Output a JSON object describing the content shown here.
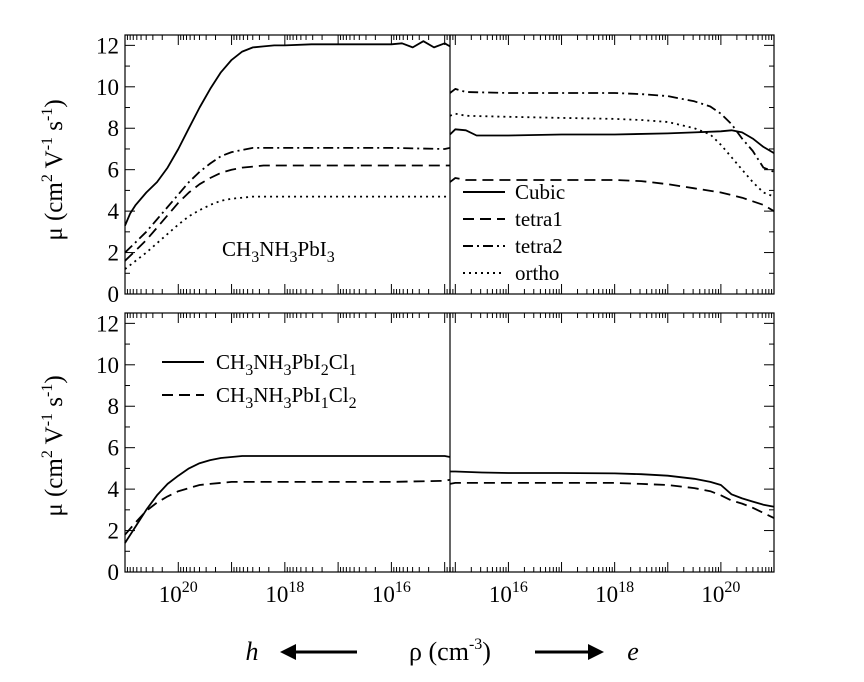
{
  "chart_data": [
    {
      "type": "line",
      "panel": "top",
      "ylabel": {
        "main": "μ (cm",
        "sup1": "2",
        "mid1": " V",
        "sup2": "-1",
        "mid2": " s",
        "sup3": "-1",
        "end": ")"
      },
      "ylim": [
        0,
        12.5
      ],
      "yticks": [
        "0",
        "2",
        "4",
        "6",
        "8",
        "10",
        "12"
      ],
      "annotation": {
        "a": "CH",
        "s1": "3",
        "b": "NH",
        "s2": "3",
        "c": "PbI",
        "s3": "3"
      },
      "sides": {
        "left": {
          "carrier": "h",
          "x_log_range": [
            21,
            14.9
          ],
          "series": [
            {
              "name": "Cubic",
              "style": "solid",
              "x": [
                21,
                20.9,
                20.8,
                20.6,
                20.4,
                20.2,
                20.0,
                19.8,
                19.6,
                19.4,
                19.2,
                19.0,
                18.8,
                18.6,
                18.4,
                18.2,
                18.0,
                17.5,
                17.0,
                16.5,
                16.0,
                15.8,
                15.6,
                15.4,
                15.2,
                15.0,
                14.9
              ],
              "y": [
                3.3,
                3.9,
                4.3,
                4.9,
                5.4,
                6.1,
                7.0,
                8.0,
                9.0,
                9.9,
                10.7,
                11.3,
                11.7,
                11.9,
                11.95,
                12.0,
                12.0,
                12.05,
                12.05,
                12.05,
                12.05,
                12.1,
                11.9,
                12.2,
                11.9,
                12.1,
                11.95
              ]
            },
            {
              "name": "tetra1",
              "style": "dashed",
              "x": [
                21,
                20.8,
                20.6,
                20.4,
                20.2,
                20.0,
                19.8,
                19.6,
                19.4,
                19.2,
                19.0,
                18.8,
                18.6,
                18.4,
                18.2,
                18.0,
                17.0,
                16.0,
                15.0,
                14.9
              ],
              "y": [
                1.6,
                2.1,
                2.6,
                3.2,
                3.8,
                4.4,
                4.9,
                5.3,
                5.6,
                5.85,
                6.0,
                6.1,
                6.15,
                6.2,
                6.2,
                6.2,
                6.2,
                6.2,
                6.2,
                6.2
              ]
            },
            {
              "name": "tetra2",
              "style": "dashdot",
              "x": [
                21,
                20.8,
                20.6,
                20.4,
                20.2,
                20.0,
                19.8,
                19.6,
                19.4,
                19.2,
                19.0,
                18.8,
                18.6,
                18.4,
                18.2,
                18.0,
                17.0,
                16.0,
                15.0,
                14.9
              ],
              "y": [
                2.0,
                2.5,
                3.0,
                3.6,
                4.2,
                4.8,
                5.4,
                5.9,
                6.3,
                6.65,
                6.85,
                6.95,
                7.05,
                7.05,
                7.05,
                7.05,
                7.05,
                7.05,
                7.0,
                7.05
              ]
            },
            {
              "name": "ortho",
              "style": "dotted",
              "x": [
                21,
                20.8,
                20.6,
                20.4,
                20.2,
                20.0,
                19.8,
                19.6,
                19.4,
                19.2,
                19.0,
                18.8,
                18.6,
                18.4,
                18.2,
                18.0,
                17.0,
                16.0,
                15.0,
                14.9
              ],
              "y": [
                1.2,
                1.6,
                2.0,
                2.45,
                2.9,
                3.35,
                3.75,
                4.05,
                4.3,
                4.5,
                4.6,
                4.65,
                4.7,
                4.7,
                4.7,
                4.7,
                4.7,
                4.7,
                4.7,
                4.7
              ]
            }
          ]
        },
        "right": {
          "carrier": "e",
          "x_log_range": [
            14.9,
            21
          ],
          "series": [
            {
              "name": "Cubic",
              "style": "solid",
              "x": [
                14.9,
                15.0,
                15.2,
                15.4,
                16,
                17,
                18,
                19,
                19.5,
                20.0,
                20.2,
                20.4,
                20.6,
                20.8,
                21.0
              ],
              "y": [
                7.7,
                7.95,
                7.9,
                7.65,
                7.65,
                7.7,
                7.7,
                7.75,
                7.8,
                7.85,
                7.9,
                7.8,
                7.5,
                7.1,
                6.8
              ]
            },
            {
              "name": "tetra1",
              "style": "dashed",
              "x": [
                14.9,
                15.0,
                15.2,
                16,
                17,
                18,
                18.5,
                19.0,
                19.5,
                20.0,
                20.4,
                20.8,
                21.0
              ],
              "y": [
                5.4,
                5.6,
                5.5,
                5.5,
                5.5,
                5.5,
                5.45,
                5.3,
                5.1,
                4.9,
                4.65,
                4.3,
                4.0
              ]
            },
            {
              "name": "tetra2",
              "style": "dashdot",
              "x": [
                14.9,
                15.0,
                15.2,
                16,
                17,
                18,
                18.5,
                19.0,
                19.5,
                19.8,
                20.0,
                20.2,
                20.4,
                20.6,
                20.8,
                21.0
              ],
              "y": [
                9.7,
                9.9,
                9.75,
                9.7,
                9.7,
                9.7,
                9.65,
                9.55,
                9.3,
                9.05,
                8.7,
                8.2,
                7.5,
                6.9,
                6.1,
                5.9
              ]
            },
            {
              "name": "ortho",
              "style": "dotted",
              "x": [
                14.9,
                15.0,
                15.2,
                16,
                17,
                18,
                18.5,
                19.0,
                19.5,
                19.8,
                20.0,
                20.2,
                20.4,
                20.6,
                20.8,
                21.0
              ],
              "y": [
                8.6,
                8.7,
                8.6,
                8.55,
                8.5,
                8.45,
                8.4,
                8.3,
                8.0,
                7.7,
                7.2,
                6.6,
                6.0,
                5.4,
                4.9,
                4.7
              ]
            }
          ]
        }
      },
      "legend": {
        "placement": "lower-right of right half",
        "entries": [
          {
            "label": "Cubic",
            "style": "solid"
          },
          {
            "label": "tetra1",
            "style": "dashed"
          },
          {
            "label": "tetra2",
            "style": "dashdot"
          },
          {
            "label": "ortho",
            "style": "dotted"
          }
        ]
      }
    },
    {
      "type": "line",
      "panel": "bottom",
      "ylabel": {
        "main": "μ (cm",
        "sup1": "2",
        "mid1": " V",
        "sup2": "-1",
        "mid2": " s",
        "sup3": "-1",
        "end": ")"
      },
      "ylim": [
        0,
        12.5
      ],
      "yticks": [
        "0",
        "2",
        "4",
        "6",
        "8",
        "10",
        "12"
      ],
      "xticks_left": [
        {
          "pos": 20,
          "base": "10",
          "exp": "20"
        },
        {
          "pos": 18,
          "base": "10",
          "exp": "18"
        },
        {
          "pos": 16,
          "base": "10",
          "exp": "16"
        }
      ],
      "xticks_right": [
        {
          "pos": 16,
          "base": "10",
          "exp": "16"
        },
        {
          "pos": 18,
          "base": "10",
          "exp": "18"
        },
        {
          "pos": 20,
          "base": "10",
          "exp": "20"
        }
      ],
      "sides": {
        "left": {
          "carrier": "h",
          "x_log_range": [
            21,
            14.9
          ],
          "series": [
            {
              "name": "CH3NH3PbI2Cl1",
              "style": "solid",
              "x": [
                21,
                20.8,
                20.6,
                20.4,
                20.2,
                20.0,
                19.8,
                19.6,
                19.4,
                19.2,
                19.0,
                18.8,
                18.6,
                18.4,
                18.2,
                18.0,
                17.0,
                16.0,
                15.0,
                14.9
              ],
              "y": [
                1.4,
                2.2,
                3.0,
                3.7,
                4.25,
                4.65,
                5.0,
                5.25,
                5.4,
                5.5,
                5.55,
                5.6,
                5.6,
                5.6,
                5.6,
                5.6,
                5.6,
                5.6,
                5.6,
                5.55
              ]
            },
            {
              "name": "CH3NH3PbI1Cl2",
              "style": "dashed",
              "x": [
                21,
                20.8,
                20.6,
                20.4,
                20.2,
                20.0,
                19.8,
                19.6,
                19.4,
                19.2,
                19.0,
                18.8,
                18.6,
                18.4,
                18.2,
                18.0,
                17.0,
                16.0,
                15.0,
                14.9
              ],
              "y": [
                1.8,
                2.4,
                2.95,
                3.35,
                3.65,
                3.9,
                4.05,
                4.2,
                4.25,
                4.3,
                4.35,
                4.35,
                4.35,
                4.35,
                4.35,
                4.35,
                4.35,
                4.35,
                4.4,
                4.45
              ]
            }
          ]
        },
        "right": {
          "carrier": "e",
          "x_log_range": [
            14.9,
            21
          ],
          "series": [
            {
              "name": "CH3NH3PbI2Cl1",
              "style": "solid",
              "x": [
                14.9,
                15.0,
                15.5,
                16,
                17,
                18,
                18.5,
                19.0,
                19.5,
                19.8,
                20.0,
                20.2,
                20.4,
                20.6,
                20.8,
                21.0
              ],
              "y": [
                4.85,
                4.85,
                4.8,
                4.78,
                4.78,
                4.76,
                4.72,
                4.65,
                4.5,
                4.35,
                4.2,
                3.75,
                3.55,
                3.4,
                3.25,
                3.15
              ]
            },
            {
              "name": "CH3NH3PbI1Cl2",
              "style": "dashed",
              "x": [
                14.9,
                15.0,
                15.5,
                16,
                17,
                18,
                18.5,
                19.0,
                19.5,
                19.8,
                20.0,
                20.2,
                20.4,
                20.6,
                20.8,
                21.0
              ],
              "y": [
                4.25,
                4.3,
                4.3,
                4.3,
                4.3,
                4.3,
                4.25,
                4.2,
                4.05,
                3.9,
                3.7,
                3.45,
                3.3,
                3.1,
                2.85,
                2.6
              ]
            }
          ]
        }
      },
      "legend": {
        "placement": "upper-left of left half",
        "entries": [
          {
            "style": "solid",
            "a": "CH",
            "s1": "3",
            "b": "NH",
            "s2": "3",
            "c": "PbI",
            "s3": "2",
            "d": "Cl",
            "s4": "1"
          },
          {
            "style": "dashed",
            "a": "CH",
            "s1": "3",
            "b": "NH",
            "s2": "3",
            "c": "PbI",
            "s3": "1",
            "d": "Cl",
            "s4": "2"
          }
        ]
      }
    }
  ],
  "xaxis_label": {
    "left_carrier": "h",
    "right_carrier": "e",
    "main": "ρ (cm",
    "sup": "-3",
    "end": ")"
  },
  "colors": {
    "line": "#000000",
    "background": "#ffffff"
  }
}
